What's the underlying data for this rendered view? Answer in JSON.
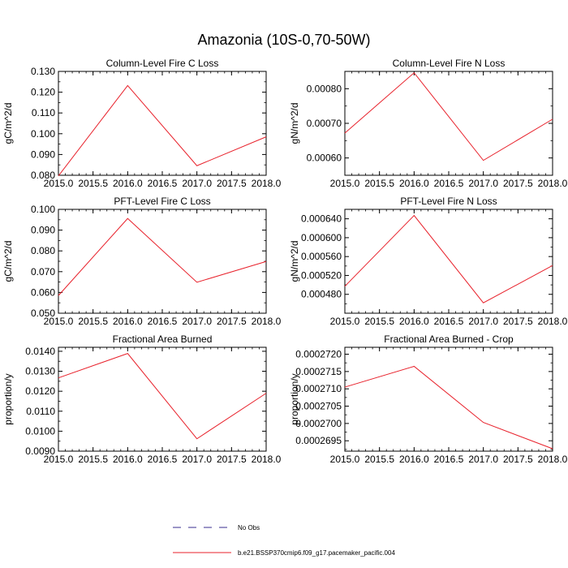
{
  "figure": {
    "title": "Amazonia (10S-0,70-50W)"
  },
  "chart_data": [
    {
      "type": "line",
      "title": "Column-Level Fire C Loss",
      "xlabel": "",
      "ylabel": "gC/m^2/d",
      "x": [
        2015.0,
        2016.0,
        2017.0,
        2018.0
      ],
      "xlim": [
        2015.0,
        2018.0
      ],
      "xticks": [
        "2015.0",
        "2015.5",
        "2016.0",
        "2016.5",
        "2017.0",
        "2017.5",
        "2018.0"
      ],
      "ylim": [
        0.08,
        0.13
      ],
      "yticks": [
        "0.080",
        "0.090",
        "0.100",
        "0.110",
        "0.120",
        "0.130"
      ],
      "series": [
        {
          "name": "b.e21.BSSP370cmip6.f09_g17.pacemaker_pacific.004",
          "values": [
            0.0797,
            0.1232,
            0.0846,
            0.0985
          ]
        }
      ]
    },
    {
      "type": "line",
      "title": "Column-Level Fire N Loss",
      "xlabel": "",
      "ylabel": "gN/m^2/d",
      "x": [
        2015.0,
        2016.0,
        2017.0,
        2018.0
      ],
      "xlim": [
        2015.0,
        2018.0
      ],
      "xticks": [
        "2015.0",
        "2015.5",
        "2016.0",
        "2016.5",
        "2017.0",
        "2017.5",
        "2018.0"
      ],
      "ylim": [
        0.00055,
        0.00085
      ],
      "yticks": [
        "0.00060",
        "0.00070",
        "0.00080"
      ],
      "series": [
        {
          "name": "b.e21.BSSP370cmip6.f09_g17.pacemaker_pacific.004",
          "values": [
            0.000672,
            0.000846,
            0.000593,
            0.000712
          ]
        }
      ]
    },
    {
      "type": "line",
      "title": "PFT-Level Fire C Loss",
      "xlabel": "",
      "ylabel": "gC/m^2/d",
      "x": [
        2015.0,
        2016.0,
        2017.0,
        2018.0
      ],
      "xlim": [
        2015.0,
        2018.0
      ],
      "xticks": [
        "2015.0",
        "2015.5",
        "2016.0",
        "2016.5",
        "2017.0",
        "2017.5",
        "2018.0"
      ],
      "ylim": [
        0.05,
        0.1
      ],
      "yticks": [
        "0.050",
        "0.060",
        "0.070",
        "0.080",
        "0.090",
        "0.100"
      ],
      "series": [
        {
          "name": "b.e21.BSSP370cmip6.f09_g17.pacemaker_pacific.004",
          "values": [
            0.0585,
            0.0956,
            0.0649,
            0.0749
          ]
        }
      ]
    },
    {
      "type": "line",
      "title": "PFT-Level Fire N Loss",
      "xlabel": "",
      "ylabel": "gN/m^2/d",
      "x": [
        2015.0,
        2016.0,
        2017.0,
        2018.0
      ],
      "xlim": [
        2015.0,
        2018.0
      ],
      "xticks": [
        "2015.0",
        "2015.5",
        "2016.0",
        "2016.5",
        "2017.0",
        "2017.5",
        "2018.0"
      ],
      "ylim": [
        0.00044,
        0.00066
      ],
      "yticks": [
        "0.000480",
        "0.000520",
        "0.000560",
        "0.000600",
        "0.000640"
      ],
      "series": [
        {
          "name": "b.e21.BSSP370cmip6.f09_g17.pacemaker_pacific.004",
          "values": [
            0.000497,
            0.000647,
            0.000462,
            0.000541
          ]
        }
      ]
    },
    {
      "type": "line",
      "title": "Fractional Area Burned",
      "xlabel": "",
      "ylabel": "proportion/y",
      "x": [
        2015.0,
        2016.0,
        2017.0,
        2018.0
      ],
      "xlim": [
        2015.0,
        2018.0
      ],
      "xticks": [
        "2015.0",
        "2015.5",
        "2016.0",
        "2016.5",
        "2017.0",
        "2017.5",
        "2018.0"
      ],
      "ylim": [
        0.009,
        0.0142
      ],
      "yticks": [
        "0.0090",
        "0.0100",
        "0.0110",
        "0.0120",
        "0.0130",
        "0.0140"
      ],
      "series": [
        {
          "name": "b.e21.BSSP370cmip6.f09_g17.pacemaker_pacific.004",
          "values": [
            0.01267,
            0.01389,
            0.00962,
            0.0119
          ]
        }
      ]
    },
    {
      "type": "line",
      "title": "Fractional Area Burned - Crop",
      "xlabel": "",
      "ylabel": "proportion/y",
      "x": [
        2015.0,
        2016.0,
        2017.0,
        2018.0
      ],
      "xlim": [
        2015.0,
        2018.0
      ],
      "xticks": [
        "2015.0",
        "2015.5",
        "2016.0",
        "2016.5",
        "2017.0",
        "2017.5",
        "2018.0"
      ],
      "ylim": [
        0.0002692,
        0.0002722
      ],
      "yticks": [
        "0.0002695",
        "0.0002700",
        "0.0002705",
        "0.0002710",
        "0.0002715",
        "0.0002720"
      ],
      "series": [
        {
          "name": "b.e21.BSSP370cmip6.f09_g17.pacemaker_pacific.004",
          "values": [
            0.00027105,
            0.00027165,
            0.00027003,
            0.00026927
          ]
        }
      ]
    }
  ],
  "legend": {
    "items": [
      {
        "label": "No Obs",
        "style": "dashed",
        "color": "#3a2c8f"
      },
      {
        "label": "b.e21.BSSP370cmip6.f09_g17.pacemaker_pacific.004",
        "style": "solid",
        "color": "#e8212b"
      }
    ]
  },
  "colors": {
    "series": "#e8212b",
    "axis": "#000000"
  }
}
